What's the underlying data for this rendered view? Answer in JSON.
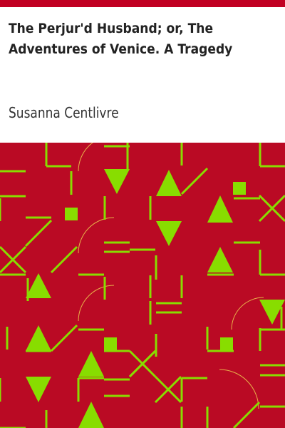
{
  "cover": {
    "title": "The Perjur'd Husband; or, The Adventures of Venice. A Tragedy",
    "author": "Susanna Centlivre"
  },
  "colors": {
    "background": "#ffffff",
    "accent_bar": "#c10022",
    "pattern_background": "#ba0a24",
    "pattern_shape": "#88dd00",
    "arc": "#e8b24a",
    "title_text": "#222222",
    "author_text": "#333333"
  }
}
